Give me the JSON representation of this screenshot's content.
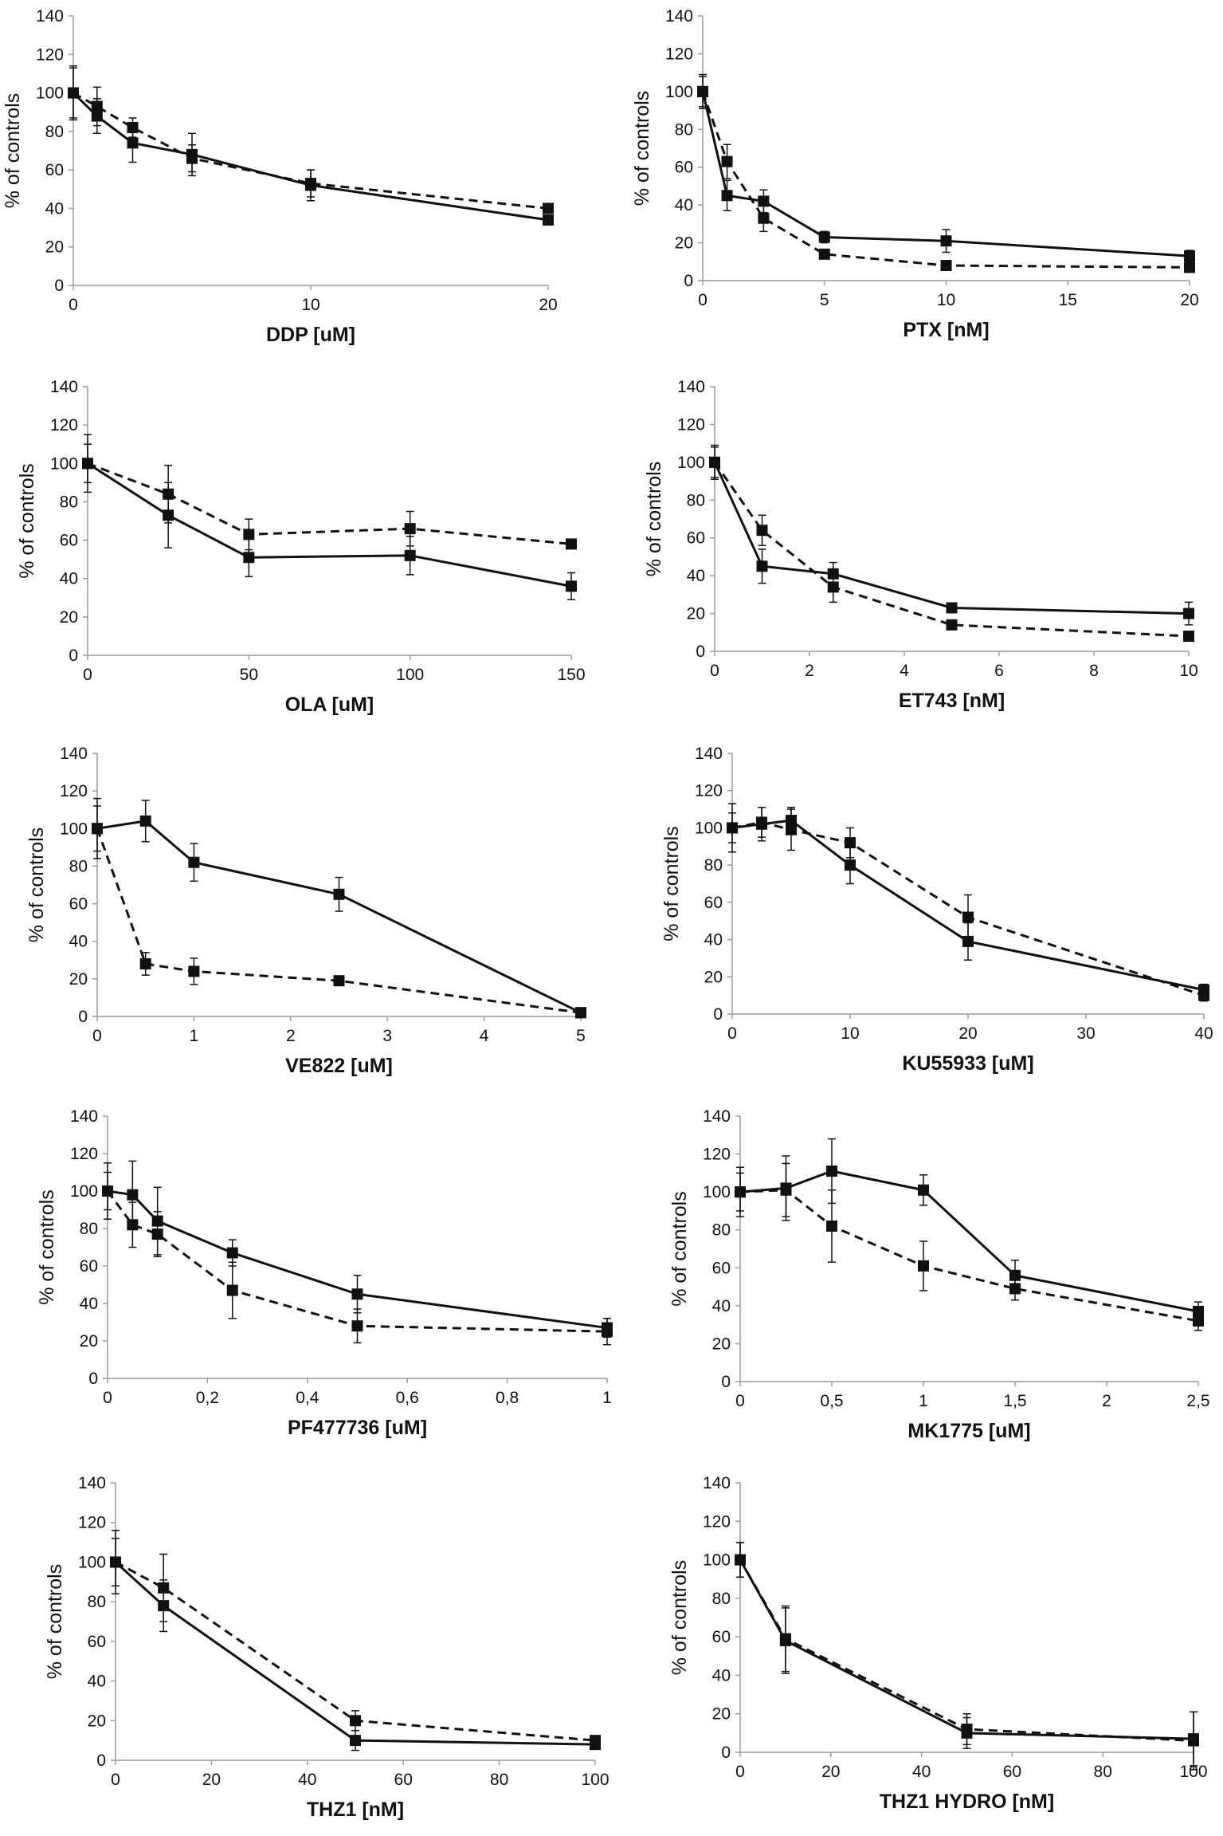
{
  "figure": {
    "series_styles": {
      "solid": "solid",
      "dashed": "dashed"
    },
    "colors": {
      "line": "#111111",
      "marker": "#111111",
      "text": "#111111",
      "axis": "#9a9a9a"
    }
  },
  "chart_data": [
    {
      "type": "line",
      "title": "",
      "xlabel": "DDP [uM]",
      "ylabel": "% of controls",
      "xlim": [
        0,
        20
      ],
      "xticks": [
        0,
        10,
        20
      ],
      "xtick_labels": [
        "0",
        "10",
        "20"
      ],
      "ylim": [
        0,
        140
      ],
      "yticks": [
        0,
        20,
        40,
        60,
        80,
        100,
        120,
        140
      ],
      "x": [
        0,
        1,
        2.5,
        5,
        10,
        20
      ],
      "series": [
        {
          "name": "solid",
          "values": [
            100,
            88,
            74,
            68,
            52,
            34
          ],
          "errors": [
            13,
            9,
            10,
            11,
            8,
            2
          ]
        },
        {
          "name": "dashed",
          "values": [
            100,
            93,
            82,
            66,
            53,
            40
          ],
          "errors": [
            14,
            10,
            5,
            7,
            7,
            2
          ]
        }
      ]
    },
    {
      "type": "line",
      "title": "",
      "xlabel": "PTX [nM]",
      "ylabel": "% of controls",
      "xlim": [
        0,
        20
      ],
      "xticks": [
        0,
        5,
        10,
        15,
        20
      ],
      "xtick_labels": [
        "0",
        "5",
        "10",
        "15",
        "20"
      ],
      "ylim": [
        0,
        140
      ],
      "yticks": [
        0,
        20,
        40,
        60,
        80,
        100,
        120,
        140
      ],
      "x": [
        0,
        1,
        2.5,
        5,
        10,
        20
      ],
      "series": [
        {
          "name": "solid",
          "values": [
            100,
            45,
            42,
            23,
            21,
            13
          ],
          "errors": [
            9,
            8,
            6,
            3,
            6,
            3
          ]
        },
        {
          "name": "dashed",
          "values": [
            100,
            63,
            33,
            14,
            8,
            7
          ],
          "errors": [
            8,
            9,
            7,
            2,
            2,
            2
          ]
        }
      ]
    },
    {
      "type": "line",
      "title": "",
      "xlabel": "OLA [uM]",
      "ylabel": "% of controls",
      "xlim": [
        0,
        150
      ],
      "xticks": [
        0,
        50,
        100,
        150
      ],
      "xtick_labels": [
        "0",
        "50",
        "100",
        "150"
      ],
      "ylim": [
        0,
        140
      ],
      "yticks": [
        0,
        20,
        40,
        60,
        80,
        100,
        120,
        140
      ],
      "x": [
        0,
        25,
        50,
        100,
        150
      ],
      "series": [
        {
          "name": "solid",
          "values": [
            100,
            73,
            51,
            52,
            36
          ],
          "errors": [
            15,
            17,
            10,
            10,
            7
          ]
        },
        {
          "name": "dashed",
          "values": [
            100,
            84,
            63,
            66,
            58
          ],
          "errors": [
            10,
            15,
            8,
            9,
            2
          ]
        }
      ]
    },
    {
      "type": "line",
      "title": "",
      "xlabel": "ET743 [nM]",
      "ylabel": "% of controls",
      "xlim": [
        0,
        10
      ],
      "xticks": [
        0,
        2,
        4,
        6,
        8,
        10
      ],
      "xtick_labels": [
        "0",
        "2",
        "4",
        "6",
        "8",
        "10"
      ],
      "ylim": [
        0,
        140
      ],
      "yticks": [
        0,
        20,
        40,
        60,
        80,
        100,
        120,
        140
      ],
      "x": [
        0,
        1,
        2.5,
        5,
        10
      ],
      "series": [
        {
          "name": "solid",
          "values": [
            100,
            45,
            41,
            23,
            20
          ],
          "errors": [
            9,
            9,
            6,
            2,
            6
          ]
        },
        {
          "name": "dashed",
          "values": [
            100,
            64,
            34,
            14,
            8
          ],
          "errors": [
            8,
            8,
            8,
            2,
            1
          ]
        }
      ]
    },
    {
      "type": "line",
      "title": "",
      "xlabel": "VE822 [uM]",
      "ylabel": "% of controls",
      "xlim": [
        0,
        5
      ],
      "xticks": [
        0,
        1,
        2,
        3,
        4,
        5
      ],
      "xtick_labels": [
        "0",
        "1",
        "2",
        "3",
        "4",
        "5"
      ],
      "ylim": [
        0,
        140
      ],
      "yticks": [
        0,
        20,
        40,
        60,
        80,
        100,
        120,
        140
      ],
      "x": [
        0,
        0.5,
        1,
        2.5,
        5
      ],
      "series": [
        {
          "name": "solid",
          "values": [
            100,
            104,
            82,
            65,
            2
          ],
          "errors": [
            16,
            11,
            10,
            9,
            1
          ]
        },
        {
          "name": "dashed",
          "values": [
            100,
            28,
            24,
            19,
            2
          ],
          "errors": [
            12,
            6,
            7,
            2,
            1
          ]
        }
      ]
    },
    {
      "type": "line",
      "title": "",
      "xlabel": "KU55933 [uM]",
      "ylabel": "% of controls",
      "xlim": [
        0,
        40
      ],
      "xticks": [
        0,
        10,
        20,
        30,
        40
      ],
      "xtick_labels": [
        "0",
        "10",
        "20",
        "30",
        "40"
      ],
      "ylim": [
        0,
        140
      ],
      "yticks": [
        0,
        20,
        40,
        60,
        80,
        100,
        120,
        140
      ],
      "x": [
        0,
        2.5,
        5,
        10,
        20,
        40
      ],
      "series": [
        {
          "name": "solid",
          "values": [
            100,
            102,
            104,
            80,
            39,
            13
          ],
          "errors": [
            13,
            9,
            7,
            10,
            10,
            3
          ]
        },
        {
          "name": "dashed",
          "values": [
            100,
            103,
            99,
            92,
            52,
            10
          ],
          "errors": [
            8,
            8,
            11,
            8,
            12,
            3
          ]
        }
      ]
    },
    {
      "type": "line",
      "title": "",
      "xlabel": "PF477736 [uM]",
      "ylabel": "% of controls",
      "xlim": [
        0,
        1
      ],
      "xticks": [
        0,
        0.2,
        0.4,
        0.6,
        0.8,
        1
      ],
      "xtick_labels": [
        "0",
        "0,2",
        "0,4",
        "0,6",
        "0,8",
        "1"
      ],
      "ylim": [
        0,
        140
      ],
      "yticks": [
        0,
        20,
        40,
        60,
        80,
        100,
        120,
        140
      ],
      "x": [
        0,
        0.05,
        0.1,
        0.25,
        0.5,
        1
      ],
      "series": [
        {
          "name": "solid",
          "values": [
            100,
            98,
            84,
            67,
            45,
            27
          ],
          "errors": [
            15,
            18,
            18,
            7,
            10,
            5
          ]
        },
        {
          "name": "dashed",
          "values": [
            100,
            82,
            77,
            47,
            28,
            25
          ],
          "errors": [
            10,
            12,
            12,
            15,
            9,
            7
          ]
        }
      ]
    },
    {
      "type": "line",
      "title": "",
      "xlabel": "MK1775 [uM]",
      "ylabel": "% of controls",
      "xlim": [
        0,
        2.5
      ],
      "xticks": [
        0,
        0.5,
        1,
        1.5,
        2,
        2.5
      ],
      "xtick_labels": [
        "0",
        "0,5",
        "1",
        "1,5",
        "2",
        "2,5"
      ],
      "ylim": [
        0,
        140
      ],
      "yticks": [
        0,
        20,
        40,
        60,
        80,
        100,
        120,
        140
      ],
      "x": [
        0,
        0.25,
        0.5,
        1,
        1.5,
        2.5
      ],
      "series": [
        {
          "name": "solid",
          "values": [
            100,
            102,
            111,
            101,
            56,
            37
          ],
          "errors": [
            13,
            17,
            17,
            8,
            8,
            5
          ]
        },
        {
          "name": "dashed",
          "values": [
            100,
            101,
            82,
            61,
            49,
            32
          ],
          "errors": [
            10,
            14,
            19,
            13,
            6,
            5
          ]
        }
      ]
    },
    {
      "type": "line",
      "title": "",
      "xlabel": "THZ1 [nM]",
      "ylabel": "% of controls",
      "xlim": [
        0,
        100
      ],
      "xticks": [
        0,
        20,
        40,
        60,
        80,
        100
      ],
      "xtick_labels": [
        "0",
        "20",
        "40",
        "60",
        "80",
        "100"
      ],
      "ylim": [
        0,
        140
      ],
      "yticks": [
        0,
        20,
        40,
        60,
        80,
        100,
        120,
        140
      ],
      "x": [
        0,
        10,
        50,
        100
      ],
      "series": [
        {
          "name": "solid",
          "values": [
            100,
            78,
            10,
            8
          ],
          "errors": [
            16,
            13,
            5,
            2
          ]
        },
        {
          "name": "dashed",
          "values": [
            100,
            87,
            20,
            10
          ],
          "errors": [
            12,
            17,
            5,
            2
          ]
        }
      ]
    },
    {
      "type": "line",
      "title": "",
      "xlabel": "THZ1 HYDRO [nM]",
      "ylabel": "% of controls",
      "xlim": [
        0,
        100
      ],
      "xticks": [
        0,
        20,
        40,
        60,
        80,
        100
      ],
      "xtick_labels": [
        "0",
        "20",
        "40",
        "60",
        "80",
        "100"
      ],
      "ylim": [
        0,
        140
      ],
      "yticks": [
        0,
        20,
        40,
        60,
        80,
        100,
        120,
        140
      ],
      "x": [
        0,
        10,
        50,
        100
      ],
      "series": [
        {
          "name": "solid",
          "values": [
            100,
            58,
            10,
            7
          ],
          "errors": [
            9,
            17,
            8,
            14
          ]
        },
        {
          "name": "dashed",
          "values": [
            100,
            59,
            12,
            6
          ],
          "errors": [
            9,
            17,
            8,
            15
          ]
        }
      ]
    }
  ]
}
